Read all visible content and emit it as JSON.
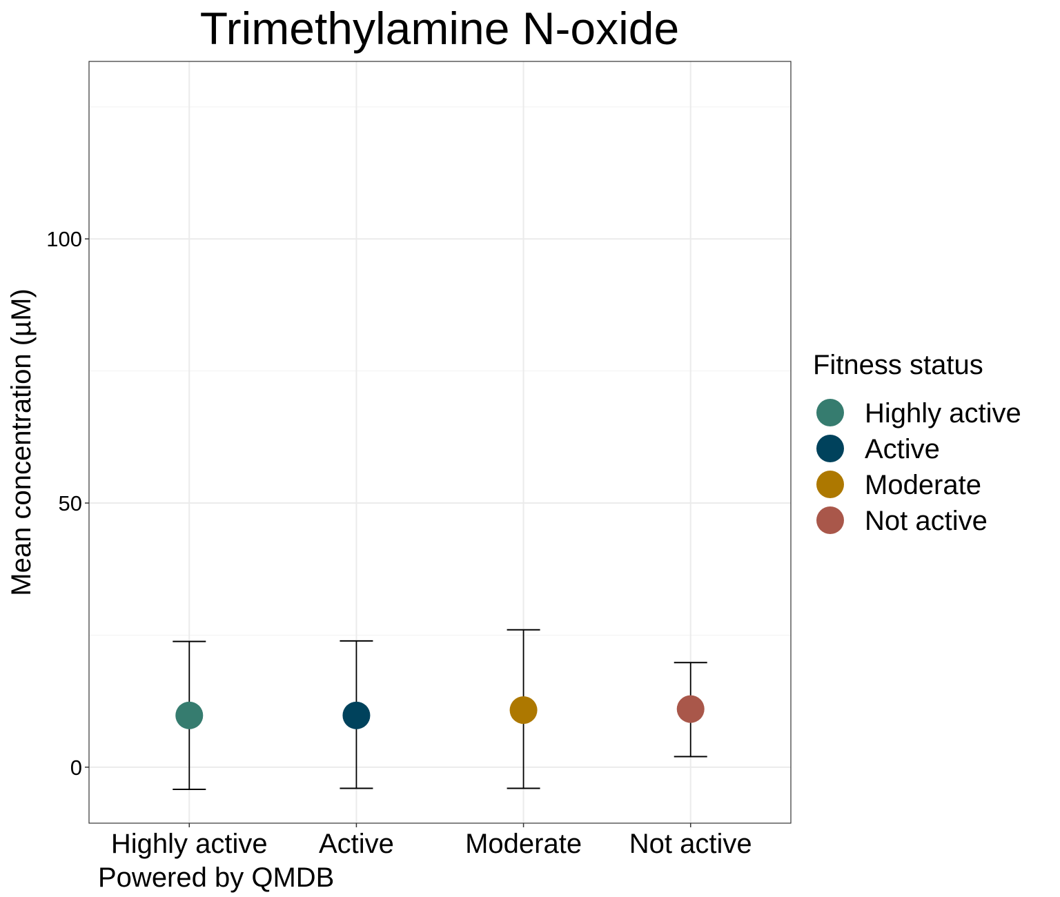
{
  "chart_data": {
    "type": "scatter",
    "title": "Trimethylamine N-oxide",
    "xlabel": "",
    "ylabel": "Mean concentration (µM)",
    "caption": "Powered by QMDB",
    "categories": [
      "Highly active",
      "Active",
      "Moderate",
      "Not active"
    ],
    "mean": [
      9.8,
      9.8,
      10.8,
      11.0
    ],
    "error_low": [
      -4.2,
      -4.0,
      -4.0,
      2.0
    ],
    "error_high": [
      23.8,
      23.9,
      26.0,
      19.8
    ],
    "colors": [
      "#367C6F",
      "#00425C",
      "#AD7800",
      "#A9574A"
    ],
    "ylim": [
      -10.6,
      133.6
    ],
    "yticks": [
      0,
      50,
      100
    ],
    "grid": true,
    "legend": {
      "title": "Fitness status",
      "position": "right",
      "entries": [
        "Highly active",
        "Active",
        "Moderate",
        "Not active"
      ]
    }
  }
}
